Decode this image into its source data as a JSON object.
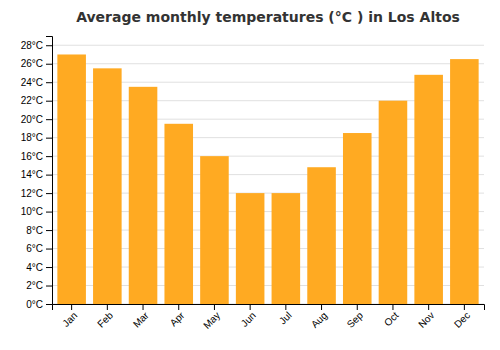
{
  "chart_data": {
    "type": "bar",
    "title": "Average monthly temperatures (°C ) in Los Altos",
    "categories": [
      "Jan",
      "Feb",
      "Mar",
      "Apr",
      "May",
      "Jun",
      "Jul",
      "Aug",
      "Sep",
      "Oct",
      "Nov",
      "Dec"
    ],
    "values": [
      27.0,
      25.5,
      23.5,
      19.5,
      16.0,
      12.0,
      12.0,
      14.8,
      18.5,
      22.0,
      24.8,
      26.5
    ],
    "color": "#FFAA22",
    "ylim": [
      0,
      29
    ],
    "yticks": [
      {
        "value": 0,
        "label": "0°C"
      },
      {
        "value": 2,
        "label": "2°C"
      },
      {
        "value": 4,
        "label": "4°C"
      },
      {
        "value": 6,
        "label": "6°C"
      },
      {
        "value": 8,
        "label": "8°C"
      },
      {
        "value": 10,
        "label": "10°C"
      },
      {
        "value": 12,
        "label": "12°C"
      },
      {
        "value": 14,
        "label": "14°C"
      },
      {
        "value": 16,
        "label": "16°C"
      },
      {
        "value": 18,
        "label": "18°C"
      },
      {
        "value": 20,
        "label": "20°C"
      },
      {
        "value": 22,
        "label": "22°C"
      },
      {
        "value": 24,
        "label": "24°C"
      },
      {
        "value": 26,
        "label": "26°C"
      },
      {
        "value": 28,
        "label": "28°C"
      }
    ],
    "grid": true
  }
}
